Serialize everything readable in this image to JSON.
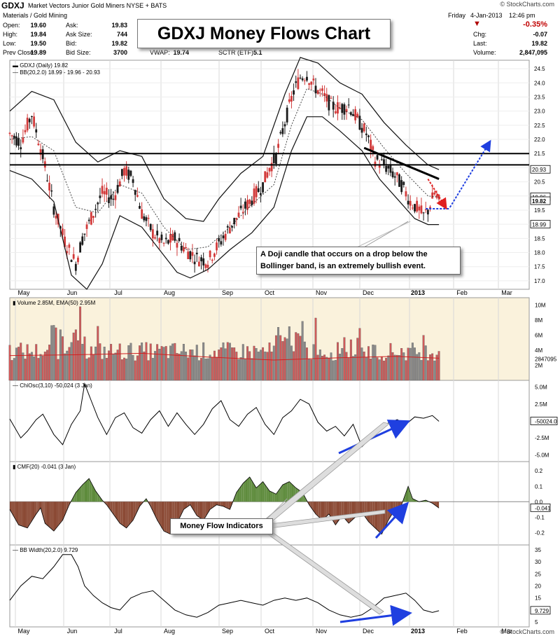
{
  "header": {
    "symbol": "GDXJ",
    "name": "Market Vectors Junior Gold Miners",
    "exchange": "NYSE + BATS",
    "sector": "Materials / Gold Mining",
    "date": "Friday",
    "date2": "4-Jan-2013",
    "time": "12:46 pm",
    "pct_change": "-0.35%",
    "open_label": "Open:",
    "open": "19.60",
    "high_label": "High:",
    "high": "19.84",
    "low_label": "Low:",
    "low": "19.50",
    "prev_label": "Prev Close:",
    "prev": "19.89",
    "ask_label": "Ask:",
    "ask": "19.83",
    "asksize_label": "Ask Size:",
    "asksize": "744",
    "bid_label": "Bid:",
    "bid": "19.82",
    "bidsize_label": "Bid Size:",
    "bidsize": "3700",
    "vwap_label": "VWAP:",
    "vwap": "19.74",
    "sctr_label": "SCTR (ETF):",
    "sctr": "5.1",
    "chg_label": "Chg:",
    "chg": "-0.07",
    "last_label": "Last:",
    "last": "19.82",
    "vol_label": "Volume:",
    "vol": "2,847,095",
    "watermark": "© StockCharts.com",
    "bottom_watermark": "© StockCharts.com"
  },
  "title_box": "GDXJ Money Flows Chart",
  "annotation_doji": [
    "A Doji candle that occurs on a drop below the",
    "Bollinger band, is an extremely bullish event."
  ],
  "annotation_mf": "Money Flow Indicators",
  "colors": {
    "up": "#d23a3a",
    "down": "#1a1a1a",
    "vol_up": "#d05a5a",
    "vol_down": "#8a8a8a",
    "cmf_pos": "#5e8b3c",
    "cmf_neg": "#8b4a35",
    "panel_bg": "#faf2dc",
    "arrow_blue": "#1f3fe0",
    "arrow_red": "#e02020"
  },
  "chart_data": [
    {
      "type": "candlestick",
      "label": "GDXJ (Daily) 19.82",
      "bb_label": "BB(20,2.0) 18.99 - 19.96 - 20.93",
      "x": [
        "May",
        "Jun",
        "Jul",
        "Aug",
        "Sep",
        "Oct",
        "Nov",
        "Dec",
        "2013",
        "Feb",
        "Mar"
      ],
      "y_ticks": [
        17.0,
        17.5,
        18.0,
        18.5,
        19.0,
        19.5,
        20.0,
        20.5,
        21.0,
        21.5,
        22.0,
        22.5,
        23.0,
        23.5,
        24.0,
        24.5
      ],
      "ylim": [
        16.7,
        24.8
      ],
      "price_tags": [
        20.93,
        19.96,
        19.82,
        18.99
      ],
      "price_path": [
        [
          0,
          22.2
        ],
        [
          5,
          21.9
        ],
        [
          10,
          22.9
        ],
        [
          15,
          21.4
        ],
        [
          20,
          19.6
        ],
        [
          25,
          18.4
        ],
        [
          30,
          17.6
        ],
        [
          33,
          18.5
        ],
        [
          38,
          19.4
        ],
        [
          42,
          20.1
        ],
        [
          47,
          19.9
        ],
        [
          52,
          20.9
        ],
        [
          56,
          20.6
        ],
        [
          60,
          19.4
        ],
        [
          65,
          18.7
        ],
        [
          70,
          18.3
        ],
        [
          75,
          18.5
        ],
        [
          80,
          18.1
        ],
        [
          85,
          17.8
        ],
        [
          90,
          17.7
        ],
        [
          95,
          18.3
        ],
        [
          100,
          18.9
        ],
        [
          105,
          19.4
        ],
        [
          110,
          19.9
        ],
        [
          115,
          20.4
        ],
        [
          118,
          21.0
        ],
        [
          121,
          21.4
        ],
        [
          125,
          22.6
        ],
        [
          129,
          23.7
        ],
        [
          132,
          24.2
        ],
        [
          135,
          24.3
        ],
        [
          138,
          23.9
        ],
        [
          142,
          23.6
        ],
        [
          146,
          23.2
        ],
        [
          150,
          23.1
        ],
        [
          154,
          23.2
        ],
        [
          158,
          22.7
        ],
        [
          162,
          22.2
        ],
        [
          166,
          21.3
        ],
        [
          170,
          21.1
        ],
        [
          174,
          20.8
        ],
        [
          178,
          20.4
        ],
        [
          182,
          19.8
        ],
        [
          186,
          19.5
        ],
        [
          188,
          19.3
        ],
        [
          190,
          19.5
        ],
        [
          193,
          20.1
        ],
        [
          195,
          19.8
        ]
      ],
      "bb_upper": [
        [
          0,
          23.0
        ],
        [
          10,
          23.7
        ],
        [
          20,
          23.4
        ],
        [
          30,
          21.9
        ],
        [
          40,
          21.2
        ],
        [
          50,
          21.6
        ],
        [
          60,
          21.4
        ],
        [
          70,
          19.9
        ],
        [
          80,
          19.2
        ],
        [
          88,
          19.1
        ],
        [
          95,
          19.9
        ],
        [
          105,
          20.8
        ],
        [
          115,
          21.4
        ],
        [
          125,
          23.6
        ],
        [
          132,
          24.9
        ],
        [
          140,
          24.7
        ],
        [
          150,
          24.0
        ],
        [
          160,
          23.6
        ],
        [
          170,
          22.6
        ],
        [
          180,
          21.8
        ],
        [
          190,
          21.1
        ],
        [
          195,
          20.93
        ]
      ],
      "bb_lower": [
        [
          0,
          20.9
        ],
        [
          10,
          20.6
        ],
        [
          20,
          19.8
        ],
        [
          28,
          17.2
        ],
        [
          35,
          16.7
        ],
        [
          42,
          17.6
        ],
        [
          50,
          19.3
        ],
        [
          60,
          18.9
        ],
        [
          70,
          17.9
        ],
        [
          76,
          17.3
        ],
        [
          82,
          17.1
        ],
        [
          90,
          17.4
        ],
        [
          100,
          18.1
        ],
        [
          110,
          18.7
        ],
        [
          120,
          19.6
        ],
        [
          128,
          21.6
        ],
        [
          135,
          22.8
        ],
        [
          142,
          22.8
        ],
        [
          150,
          22.3
        ],
        [
          160,
          21.6
        ],
        [
          168,
          20.6
        ],
        [
          176,
          19.9
        ],
        [
          184,
          19.2
        ],
        [
          190,
          18.99
        ],
        [
          195,
          18.99
        ]
      ],
      "bb_mid": [
        [
          0,
          22.0
        ],
        [
          10,
          22.1
        ],
        [
          20,
          21.6
        ],
        [
          30,
          19.6
        ],
        [
          40,
          19.4
        ],
        [
          50,
          20.4
        ],
        [
          60,
          20.1
        ],
        [
          70,
          18.9
        ],
        [
          80,
          18.1
        ],
        [
          90,
          18.2
        ],
        [
          100,
          18.9
        ],
        [
          110,
          19.7
        ],
        [
          120,
          20.4
        ],
        [
          128,
          22.5
        ],
        [
          135,
          23.8
        ],
        [
          142,
          23.6
        ],
        [
          150,
          23.1
        ],
        [
          160,
          22.7
        ],
        [
          170,
          21.7
        ],
        [
          180,
          20.8
        ],
        [
          190,
          20.0
        ],
        [
          195,
          19.96
        ]
      ],
      "resistance_lines": [
        21.5,
        21.1
      ],
      "trendline": [
        [
          161,
          21.7
        ],
        [
          195,
          20.6
        ]
      ]
    },
    {
      "type": "bar",
      "label": "Volume 2.85M, EMA(50) 2.95M",
      "y_ticks": [
        "10M",
        "8M",
        "6M",
        "4M",
        "2847095",
        "2M"
      ],
      "ylim": [
        0,
        11000000
      ],
      "ema": [
        [
          0,
          3.3
        ],
        [
          30,
          3.4
        ],
        [
          60,
          3.6
        ],
        [
          90,
          3.1
        ],
        [
          120,
          2.7
        ],
        [
          150,
          3.0
        ],
        [
          175,
          3.2
        ],
        [
          195,
          2.95
        ]
      ]
    },
    {
      "type": "line",
      "label": "ChiOsc(3,10) -50,024 (3 Jan)",
      "y_ticks": [
        "5.0M",
        "2.5M",
        "0.0M",
        "-50024.0",
        "-2.5M",
        "-5.0M"
      ],
      "ylim": [
        -6000000,
        6000000
      ],
      "series": [
        [
          0,
          0.3
        ],
        [
          5,
          -2.5
        ],
        [
          8,
          -1.5
        ],
        [
          12,
          0.2
        ],
        [
          15,
          1.0
        ],
        [
          20,
          -2.0
        ],
        [
          24,
          -3.5
        ],
        [
          28,
          -0.5
        ],
        [
          32,
          1.5
        ],
        [
          34,
          5.5
        ],
        [
          37,
          3.0
        ],
        [
          40,
          0.5
        ],
        [
          44,
          -2.0
        ],
        [
          48,
          0.5
        ],
        [
          52,
          1.2
        ],
        [
          56,
          -1.0
        ],
        [
          60,
          -1.8
        ],
        [
          64,
          0.2
        ],
        [
          68,
          1.5
        ],
        [
          72,
          -0.8
        ],
        [
          76,
          1.2
        ],
        [
          80,
          -0.5
        ],
        [
          84,
          -2.0
        ],
        [
          88,
          -0.5
        ],
        [
          92,
          1.8
        ],
        [
          96,
          3.0
        ],
        [
          100,
          0.2
        ],
        [
          104,
          -0.8
        ],
        [
          108,
          1.0
        ],
        [
          112,
          2.0
        ],
        [
          116,
          -0.5
        ],
        [
          120,
          -2.0
        ],
        [
          124,
          0.5
        ],
        [
          128,
          1.5
        ],
        [
          132,
          3.2
        ],
        [
          136,
          2.5
        ],
        [
          140,
          -0.2
        ],
        [
          144,
          -1.5
        ],
        [
          148,
          -0.8
        ],
        [
          152,
          -2.2
        ],
        [
          156,
          -0.5
        ],
        [
          160,
          -3.8
        ],
        [
          164,
          -2.5
        ],
        [
          168,
          -1.0
        ],
        [
          172,
          -0.3
        ],
        [
          176,
          0.2
        ],
        [
          180,
          -0.5
        ],
        [
          184,
          0.6
        ],
        [
          188,
          0.4
        ],
        [
          192,
          0.8
        ],
        [
          195,
          -0.05
        ]
      ]
    },
    {
      "type": "area",
      "label": "CMF(20) -0.041 (3 Jan)",
      "y_ticks": [
        0.2,
        0.1,
        0.0,
        -0.041,
        -0.1,
        -0.2
      ],
      "ylim": [
        -0.28,
        0.26
      ],
      "series": [
        [
          0,
          -0.05
        ],
        [
          4,
          -0.15
        ],
        [
          8,
          -0.17
        ],
        [
          12,
          -0.08
        ],
        [
          14,
          -0.04
        ],
        [
          16,
          -0.14
        ],
        [
          20,
          -0.19
        ],
        [
          24,
          -0.12
        ],
        [
          27,
          -0.02
        ],
        [
          30,
          0.06
        ],
        [
          33,
          0.11
        ],
        [
          36,
          0.15
        ],
        [
          39,
          0.07
        ],
        [
          42,
          0.01
        ],
        [
          44,
          -0.02
        ],
        [
          47,
          -0.08
        ],
        [
          50,
          -0.14
        ],
        [
          53,
          -0.17
        ],
        [
          56,
          -0.12
        ],
        [
          59,
          -0.03
        ],
        [
          62,
          0.02
        ],
        [
          64,
          -0.03
        ],
        [
          67,
          -0.12
        ],
        [
          70,
          -0.19
        ],
        [
          73,
          -0.21
        ],
        [
          76,
          -0.14
        ],
        [
          79,
          -0.05
        ],
        [
          82,
          -0.02
        ],
        [
          85,
          -0.09
        ],
        [
          88,
          -0.12
        ],
        [
          91,
          -0.05
        ],
        [
          94,
          -0.02
        ],
        [
          97,
          -0.03
        ],
        [
          100,
          -0.05
        ],
        [
          103,
          0.06
        ],
        [
          106,
          0.12
        ],
        [
          109,
          0.16
        ],
        [
          112,
          0.09
        ],
        [
          115,
          0.13
        ],
        [
          118,
          0.07
        ],
        [
          121,
          0.05
        ],
        [
          124,
          0.11
        ],
        [
          127,
          0.13
        ],
        [
          130,
          0.09
        ],
        [
          133,
          0.06
        ],
        [
          136,
          -0.02
        ],
        [
          139,
          -0.08
        ],
        [
          142,
          -0.12
        ],
        [
          145,
          -0.08
        ],
        [
          148,
          -0.15
        ],
        [
          151,
          -0.09
        ],
        [
          154,
          -0.14
        ],
        [
          157,
          -0.1
        ],
        [
          160,
          -0.07
        ],
        [
          163,
          -0.13
        ],
        [
          166,
          -0.17
        ],
        [
          169,
          -0.21
        ],
        [
          172,
          -0.12
        ],
        [
          175,
          -0.05
        ],
        [
          178,
          -0.02
        ],
        [
          181,
          0.1
        ],
        [
          183,
          0.02
        ],
        [
          186,
          0.0
        ],
        [
          189,
          0.01
        ],
        [
          192,
          -0.01
        ],
        [
          195,
          -0.041
        ]
      ]
    },
    {
      "type": "line",
      "label": "BB Width(20,2.0) 9.729",
      "y_ticks": [
        35,
        30,
        25,
        20,
        15,
        9.729,
        5
      ],
      "ylim": [
        3,
        37
      ],
      "series": [
        [
          0,
          14
        ],
        [
          5,
          20
        ],
        [
          10,
          24
        ],
        [
          15,
          23
        ],
        [
          20,
          28
        ],
        [
          24,
          33
        ],
        [
          28,
          33
        ],
        [
          31,
          28
        ],
        [
          34,
          20
        ],
        [
          38,
          16
        ],
        [
          42,
          13
        ],
        [
          46,
          11
        ],
        [
          50,
          10
        ],
        [
          55,
          15
        ],
        [
          60,
          17
        ],
        [
          65,
          18
        ],
        [
          70,
          14
        ],
        [
          75,
          10
        ],
        [
          80,
          8
        ],
        [
          85,
          7
        ],
        [
          90,
          9
        ],
        [
          95,
          12
        ],
        [
          100,
          13
        ],
        [
          105,
          14
        ],
        [
          110,
          13
        ],
        [
          115,
          12
        ],
        [
          120,
          14
        ],
        [
          125,
          15
        ],
        [
          130,
          14
        ],
        [
          135,
          15
        ],
        [
          140,
          13
        ],
        [
          145,
          10
        ],
        [
          150,
          8
        ],
        [
          155,
          7
        ],
        [
          160,
          8
        ],
        [
          165,
          11
        ],
        [
          170,
          15
        ],
        [
          175,
          16
        ],
        [
          180,
          17
        ],
        [
          184,
          14
        ],
        [
          188,
          10
        ],
        [
          192,
          9
        ],
        [
          195,
          9.7
        ]
      ]
    }
  ]
}
